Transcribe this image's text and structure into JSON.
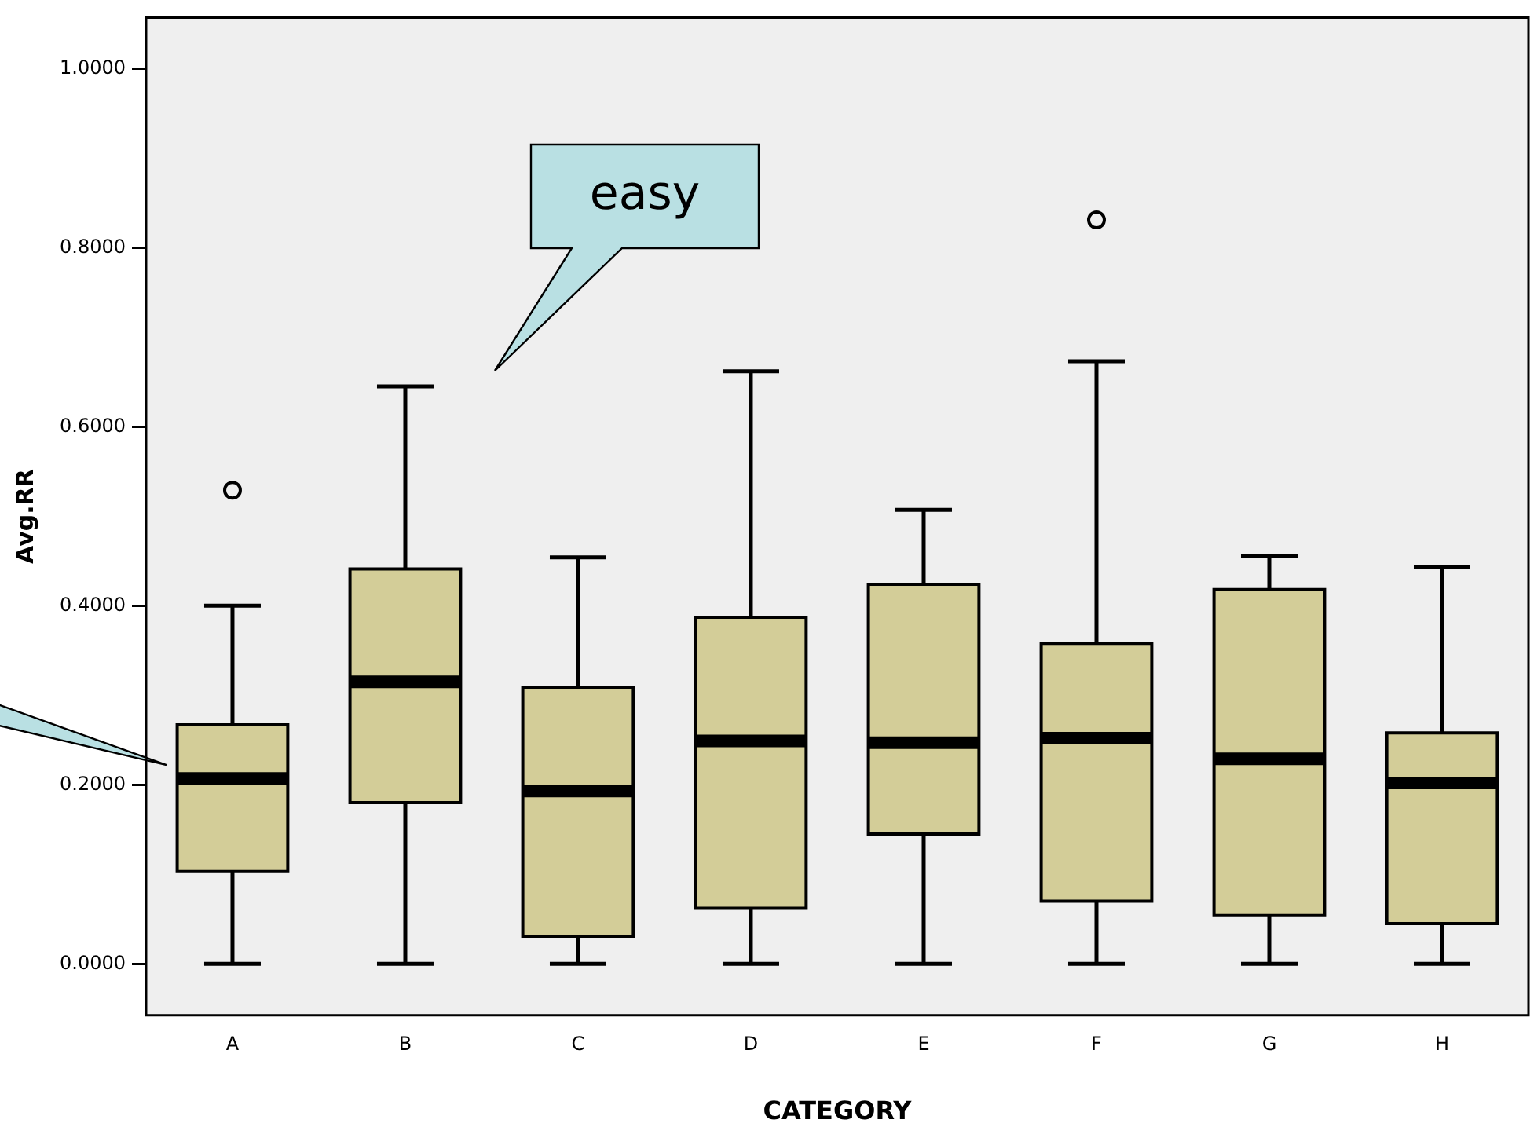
{
  "chart_data": {
    "type": "box",
    "xlabel": "CATEGORY",
    "ylabel": "Avg.RR",
    "color": "#d3cd98",
    "categories": [
      "A",
      "B",
      "C",
      "D",
      "E",
      "F",
      "G",
      "H"
    ],
    "boxes": [
      {
        "low": 0,
        "q1": 0.103,
        "median": 0.207,
        "q3": 0.267,
        "high": 0.4,
        "outliers": [
          0.529
        ]
      },
      {
        "low": 0,
        "q1": 0.18,
        "median": 0.315,
        "q3": 0.441,
        "high": 0.645
      },
      {
        "low": 0,
        "q1": 0.03,
        "median": 0.193,
        "q3": 0.309,
        "high": 0.454
      },
      {
        "low": 0,
        "q1": 0.062,
        "median": 0.249,
        "q3": 0.387,
        "high": 0.662
      },
      {
        "low": 0,
        "q1": 0.145,
        "median": 0.247,
        "q3": 0.424,
        "high": 0.507
      },
      {
        "low": 0,
        "q1": 0.07,
        "median": 0.252,
        "q3": 0.358,
        "high": 0.673,
        "outliers": [
          0.831
        ]
      },
      {
        "low": 0,
        "q1": 0.054,
        "median": 0.229,
        "q3": 0.418,
        "high": 0.456
      },
      {
        "low": 0,
        "q1": 0.045,
        "median": 0.202,
        "q3": 0.258,
        "high": 0.443
      }
    ],
    "ylim": [
      -0.0575,
      1.057
    ],
    "yticks": [
      {
        "value": 0,
        "label": "0.0000"
      },
      {
        "value": 0.2,
        "label": "0.2000"
      },
      {
        "value": 0.4,
        "label": "0.4000"
      },
      {
        "value": 0.6,
        "label": "0.6000"
      },
      {
        "value": 0.8,
        "label": "0.8000"
      },
      {
        "value": 1,
        "label": "1.0000"
      }
    ],
    "annotations": [
      "easy"
    ]
  }
}
